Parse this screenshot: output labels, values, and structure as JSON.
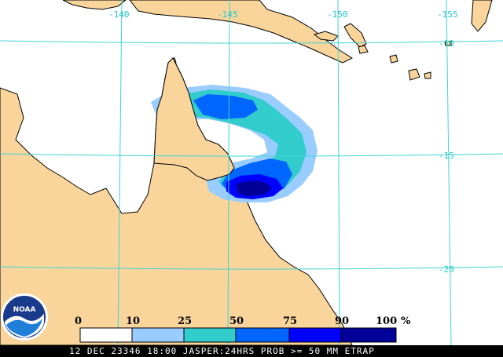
{
  "map": {
    "lon_labels": [
      "-140",
      "-145",
      "-150",
      "-155"
    ],
    "lat_labels": [
      "-10",
      "-15",
      "-20"
    ],
    "colors": {
      "land": "#f9d59c",
      "ocean": "#ffffff",
      "grid": "#3fd4d4",
      "coast": "#000000"
    }
  },
  "legend": {
    "labels": [
      "0",
      "10",
      "25",
      "50",
      "75",
      "90",
      "100",
      "%"
    ],
    "colors": [
      "#ffffff",
      "#99ccff",
      "#33cccc",
      "#0066ff",
      "#0000ff",
      "#000099"
    ]
  },
  "logo": {
    "text": "NOAA"
  },
  "footer": {
    "text": "12 DEC 23346 18:00 JASPER:24HRS PROB >= 50 MM ETRAP"
  }
}
